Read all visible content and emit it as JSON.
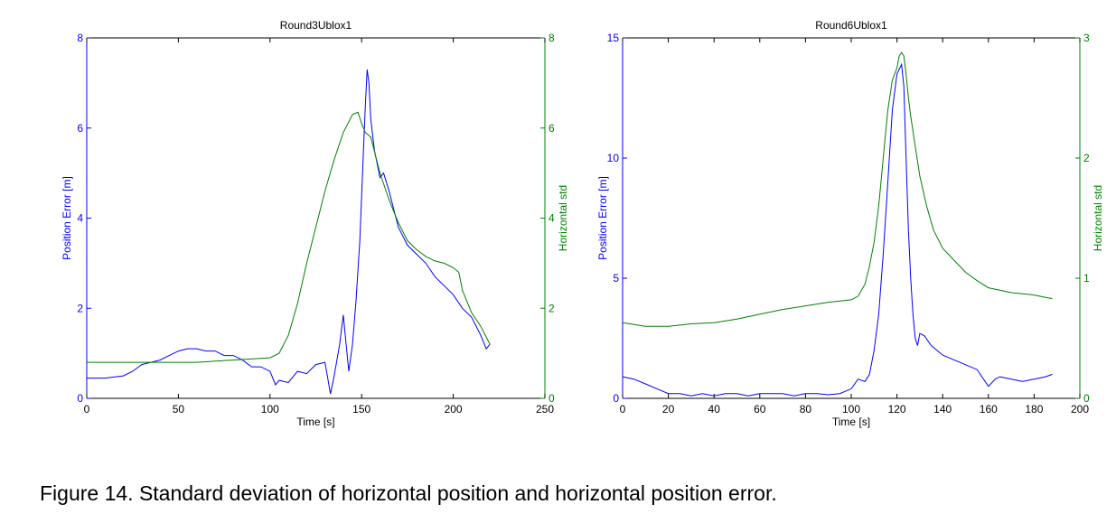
{
  "caption": "Figure 14. Standard deviation of horizontal position and horizontal position error.",
  "colors": {
    "left_axis": "#0000ff",
    "right_axis": "#008000",
    "series_error": "#0000ff",
    "series_std": "#008000"
  },
  "chart_data": [
    {
      "type": "line",
      "title": "Round3Ublox1",
      "xlabel": "Time [s]",
      "ylabel": "Position Error [m]",
      "y2label": "Horizontal std",
      "xlim": [
        0,
        250
      ],
      "ylim": [
        0,
        8
      ],
      "y2lim": [
        0,
        8
      ],
      "xticks": [
        0,
        50,
        100,
        150,
        200,
        250
      ],
      "yticks": [
        0,
        2,
        4,
        6,
        8
      ],
      "y2ticks": [
        0,
        2,
        4,
        6,
        8
      ],
      "grid": false,
      "series": [
        {
          "axis": "left",
          "x": [
            0,
            10,
            20,
            25,
            30,
            35,
            40,
            45,
            50,
            55,
            60,
            65,
            70,
            75,
            80,
            85,
            90,
            95,
            100,
            103,
            105,
            110,
            115,
            120,
            125,
            130,
            133,
            135,
            138,
            140,
            142,
            143,
            145,
            147,
            149,
            151,
            152,
            153,
            154,
            155,
            157,
            160,
            162,
            165,
            170,
            175,
            180,
            185,
            190,
            195,
            200,
            205,
            210,
            215,
            218,
            220
          ],
          "y": [
            0.45,
            0.45,
            0.5,
            0.6,
            0.75,
            0.8,
            0.85,
            0.95,
            1.05,
            1.1,
            1.1,
            1.05,
            1.05,
            0.95,
            0.95,
            0.85,
            0.7,
            0.7,
            0.6,
            0.3,
            0.4,
            0.35,
            0.6,
            0.55,
            0.75,
            0.8,
            0.1,
            0.5,
            1.2,
            1.85,
            1.0,
            0.6,
            1.2,
            2.2,
            3.5,
            5.5,
            6.5,
            7.3,
            7.0,
            6.2,
            5.5,
            4.9,
            5.0,
            4.6,
            3.8,
            3.4,
            3.2,
            3.0,
            2.7,
            2.5,
            2.3,
            2.0,
            1.8,
            1.4,
            1.1,
            1.2
          ]
        },
        {
          "axis": "right",
          "x": [
            0,
            20,
            40,
            60,
            80,
            100,
            105,
            110,
            115,
            120,
            125,
            130,
            135,
            140,
            145,
            148,
            150,
            152,
            155,
            160,
            165,
            170,
            175,
            180,
            185,
            190,
            195,
            200,
            203,
            205,
            210,
            215,
            220
          ],
          "y": [
            0.8,
            0.8,
            0.8,
            0.8,
            0.85,
            0.9,
            1.0,
            1.4,
            2.1,
            3.0,
            3.8,
            4.6,
            5.3,
            5.9,
            6.3,
            6.35,
            6.1,
            5.9,
            5.8,
            5.0,
            4.4,
            3.9,
            3.5,
            3.3,
            3.15,
            3.05,
            3.0,
            2.9,
            2.8,
            2.4,
            1.9,
            1.6,
            1.2
          ]
        }
      ]
    },
    {
      "type": "line",
      "title": "Round6Ublox1",
      "xlabel": "Time [s]",
      "ylabel": "Position Error [m]",
      "y2label": "Horizontal std",
      "xlim": [
        0,
        200
      ],
      "ylim": [
        0,
        15
      ],
      "y2lim": [
        0,
        3
      ],
      "xticks": [
        0,
        20,
        40,
        60,
        80,
        100,
        120,
        140,
        160,
        180,
        200
      ],
      "yticks": [
        0,
        5,
        10,
        15
      ],
      "y2ticks": [
        0,
        1,
        2,
        3
      ],
      "grid": false,
      "series": [
        {
          "axis": "left",
          "x": [
            0,
            5,
            10,
            15,
            20,
            25,
            30,
            35,
            40,
            45,
            50,
            55,
            60,
            65,
            70,
            75,
            80,
            85,
            90,
            95,
            100,
            103,
            106,
            108,
            110,
            112,
            114,
            116,
            118,
            120,
            122,
            123,
            124,
            125,
            126,
            127,
            128,
            129,
            130,
            132,
            135,
            140,
            145,
            150,
            155,
            160,
            163,
            165,
            170,
            175,
            180,
            185,
            188
          ],
          "y": [
            0.9,
            0.8,
            0.6,
            0.4,
            0.2,
            0.2,
            0.1,
            0.2,
            0.1,
            0.2,
            0.2,
            0.1,
            0.2,
            0.2,
            0.2,
            0.1,
            0.2,
            0.2,
            0.15,
            0.2,
            0.4,
            0.8,
            0.7,
            1.0,
            2.0,
            3.5,
            6.0,
            9.0,
            12.0,
            13.5,
            13.9,
            13.0,
            10.0,
            7.0,
            5.0,
            3.5,
            2.5,
            2.2,
            2.7,
            2.6,
            2.2,
            1.8,
            1.6,
            1.4,
            1.2,
            0.5,
            0.8,
            0.9,
            0.8,
            0.7,
            0.8,
            0.9,
            1.0
          ]
        },
        {
          "axis": "right",
          "x": [
            0,
            10,
            20,
            30,
            40,
            50,
            60,
            70,
            80,
            90,
            100,
            103,
            106,
            108,
            110,
            112,
            114,
            116,
            118,
            120,
            121,
            122,
            123,
            124,
            125,
            126,
            128,
            130,
            133,
            136,
            140,
            145,
            150,
            155,
            160,
            165,
            170,
            175,
            180,
            185,
            188
          ],
          "y": [
            0.63,
            0.6,
            0.6,
            0.62,
            0.63,
            0.66,
            0.7,
            0.74,
            0.77,
            0.8,
            0.82,
            0.85,
            0.95,
            1.1,
            1.3,
            1.6,
            2.0,
            2.4,
            2.65,
            2.75,
            2.85,
            2.88,
            2.85,
            2.7,
            2.5,
            2.35,
            2.1,
            1.85,
            1.6,
            1.4,
            1.25,
            1.15,
            1.05,
            0.98,
            0.92,
            0.9,
            0.88,
            0.87,
            0.86,
            0.84,
            0.83
          ]
        }
      ]
    }
  ]
}
